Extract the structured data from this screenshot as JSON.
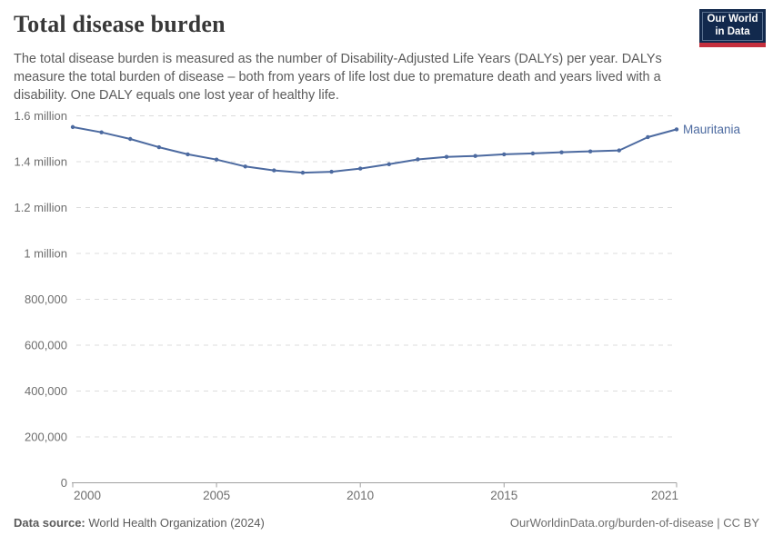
{
  "header": {
    "title": "Total disease burden",
    "subtitle": "The total disease burden is measured as the number of Disability-Adjusted Life Years (DALYs) per year. DALYs measure the total burden of disease – both from years of life lost due to premature death and years lived with a disability. One DALY equals one lost year of healthy life.",
    "logo": {
      "line1": "Our World",
      "line2": "in Data"
    }
  },
  "footer": {
    "datasource_label": "Data source:",
    "datasource_value": "World Health Organization (2024)",
    "right_text": "OurWorldinData.org/burden-of-disease | CC BY"
  },
  "colors": {
    "series_blue": "#4c6aa0",
    "gridline": "#dcdcdc",
    "axis": "#a0a0a0",
    "tick_text": "#6e6e6e",
    "logo_navy": "#12294d",
    "logo_red": "#c5303e"
  },
  "chart_data": {
    "type": "line",
    "title": "Total disease burden",
    "xlabel": "",
    "ylabel": "",
    "grid": "horizontal-dashed",
    "legend_position": "end-of-line-label",
    "xlim": [
      2000,
      2021
    ],
    "ylim": [
      0,
      1600000
    ],
    "x": [
      2000,
      2001,
      2002,
      2003,
      2004,
      2005,
      2006,
      2007,
      2008,
      2009,
      2010,
      2011,
      2012,
      2013,
      2014,
      2015,
      2016,
      2017,
      2018,
      2019,
      2020,
      2021
    ],
    "series": [
      {
        "name": "Mauritania",
        "color": "#4c6aa0",
        "values": [
          1551000,
          1528000,
          1499000,
          1463000,
          1432000,
          1409000,
          1379000,
          1362000,
          1352000,
          1356000,
          1370000,
          1389000,
          1410000,
          1421000,
          1425000,
          1432000,
          1436000,
          1441000,
          1445000,
          1449000,
          1507000,
          1541000
        ]
      }
    ],
    "x_ticks": [
      {
        "value": 2000,
        "label": "2000"
      },
      {
        "value": 2005,
        "label": "2005"
      },
      {
        "value": 2010,
        "label": "2010"
      },
      {
        "value": 2015,
        "label": "2015"
      },
      {
        "value": 2021,
        "label": "2021"
      }
    ],
    "y_ticks": [
      {
        "value": 0,
        "label": "0"
      },
      {
        "value": 200000,
        "label": "200,000"
      },
      {
        "value": 400000,
        "label": "400,000"
      },
      {
        "value": 600000,
        "label": "600,000"
      },
      {
        "value": 800000,
        "label": "800,000"
      },
      {
        "value": 1000000,
        "label": "1 million"
      },
      {
        "value": 1200000,
        "label": "1.2 million"
      },
      {
        "value": 1400000,
        "label": "1.4 million"
      },
      {
        "value": 1600000,
        "label": "1.6 million"
      }
    ]
  }
}
